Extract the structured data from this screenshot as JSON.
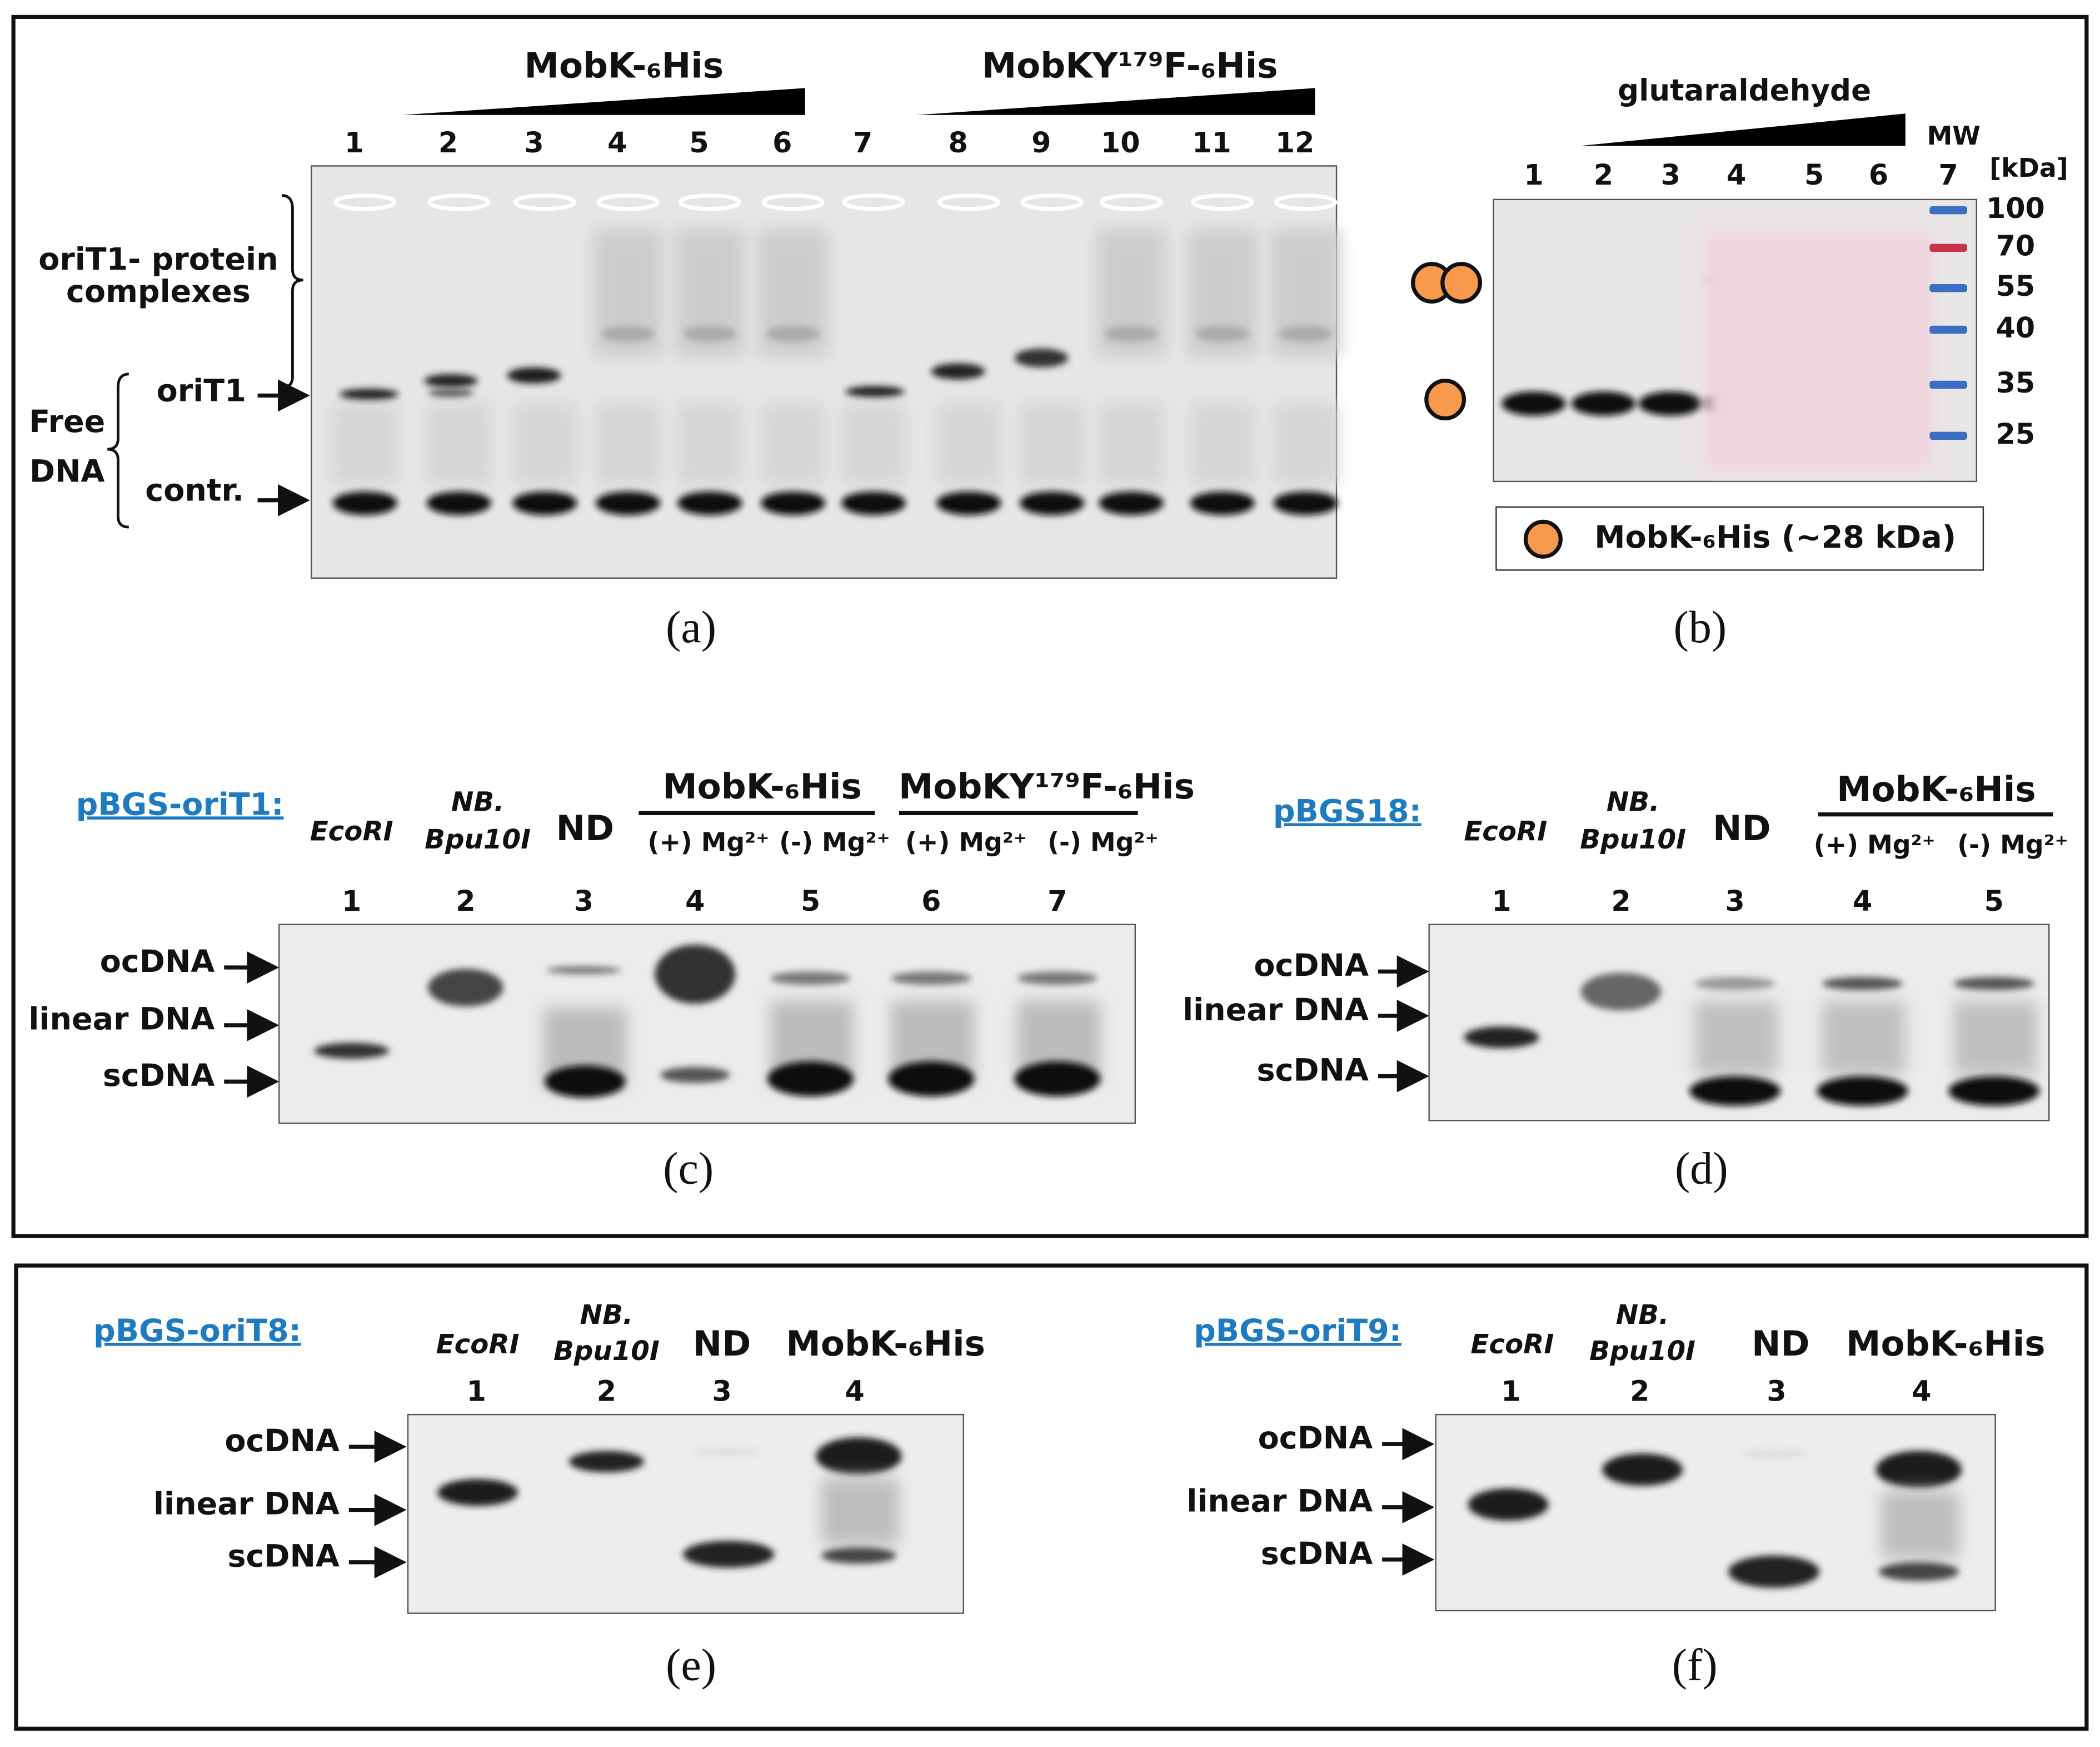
{
  "a": {
    "caption": "(a)",
    "groups": [
      "MobK-₆His",
      "MobKY¹⁷⁹F-₆His"
    ],
    "lanes": [
      "1",
      "2",
      "3",
      "4",
      "5",
      "6",
      "7",
      "8",
      "9",
      "10",
      "11",
      "12"
    ],
    "complexes": [
      "oriT1- protein",
      "complexes"
    ],
    "oriT1": "oriT1",
    "free_dna": [
      "Free",
      "DNA"
    ],
    "contr": "contr."
  },
  "b": {
    "caption": "(b)",
    "treatment": "glutaraldehyde",
    "mw": "MW",
    "unit": "[kDa]",
    "lanes": [
      "1",
      "2",
      "3",
      "4",
      "5",
      "6",
      "7"
    ],
    "markers": [
      100,
      70,
      55,
      40,
      35,
      25
    ],
    "legend": "MobK-₆His (~28 kDa)"
  },
  "c": {
    "caption": "(c)",
    "plasmid": "pBGS-oriT1:",
    "enzyme": "EcoRI",
    "nicking": [
      "NB.",
      "Bpu10I"
    ],
    "nd": "ND",
    "groups": [
      "MobK-₆His",
      "MobKY¹⁷⁹F-₆His"
    ],
    "conditions": [
      "(+) Mg²⁺",
      "(-) Mg²⁺",
      "(+) Mg²⁺",
      "(-) Mg²⁺"
    ],
    "lanes": [
      "1",
      "2",
      "3",
      "4",
      "5",
      "6",
      "7"
    ],
    "forms": [
      "ocDNA",
      "linear DNA",
      "scDNA"
    ]
  },
  "d": {
    "caption": "(d)",
    "plasmid": "pBGS18:",
    "enzyme": "EcoRI",
    "nicking": [
      "NB.",
      "Bpu10I"
    ],
    "nd": "ND",
    "group": "MobK-₆His",
    "conditions": [
      "(+) Mg²⁺",
      "(-) Mg²⁺"
    ],
    "lanes": [
      "1",
      "2",
      "3",
      "4",
      "5"
    ],
    "forms": [
      "ocDNA",
      "linear DNA",
      "scDNA"
    ]
  },
  "e": {
    "caption": "(e)",
    "plasmid": "pBGS-oriT8:",
    "enzyme": "EcoRI",
    "nicking": [
      "NB.",
      "Bpu10I"
    ],
    "nd": "ND",
    "group": "MobK-₆His",
    "lanes": [
      "1",
      "2",
      "3",
      "4"
    ],
    "forms": [
      "ocDNA",
      "linear DNA",
      "scDNA"
    ]
  },
  "f": {
    "caption": "(f)",
    "plasmid": "pBGS-oriT9:",
    "enzyme": "EcoRI",
    "nicking": [
      "NB.",
      "Bpu10I"
    ],
    "nd": "ND",
    "group": "MobK-₆His",
    "lanes": [
      "1",
      "2",
      "3",
      "4"
    ],
    "forms": [
      "ocDNA",
      "linear DNA",
      "scDNA"
    ]
  }
}
